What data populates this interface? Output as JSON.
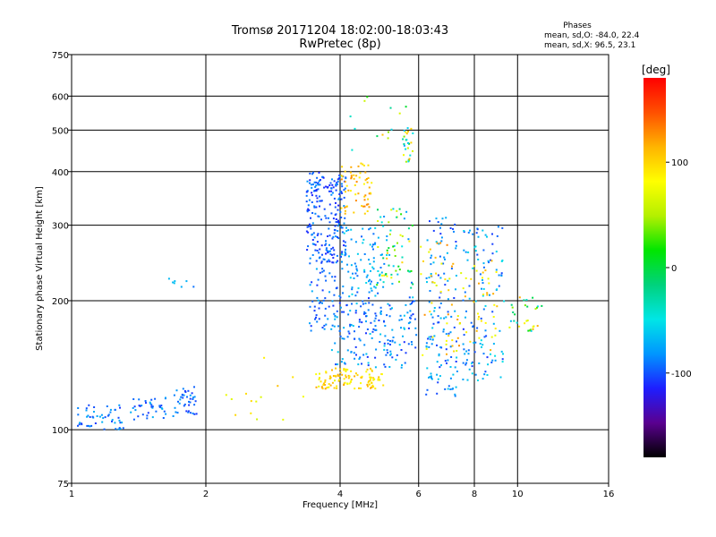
{
  "chart_data": {
    "type": "scatter",
    "title": "Tromsø 20171204 18:02:00-18:03:43",
    "subtitle": "RwPretec (8p)",
    "xlabel": "Frequency [MHz]",
    "ylabel": "Stationary phase Virtual Height [km]",
    "x_scale": "log",
    "y_scale": "log",
    "xlim": [
      1,
      16
    ],
    "ylim": [
      75,
      750
    ],
    "x_ticks": [
      1,
      2,
      4,
      6,
      8,
      10,
      16
    ],
    "y_ticks": [
      75,
      100,
      200,
      300,
      400,
      500,
      600,
      750
    ],
    "grid": true,
    "info": {
      "heading": "Phases",
      "line_o": "mean, sd,O: -84.0, 22.4",
      "line_x": "mean, sd,X:  96.5, 23.1"
    },
    "colorbar": {
      "label": "[deg]",
      "range": [
        -180,
        180
      ],
      "ticks": [
        100,
        0,
        -100
      ],
      "colors": [
        "#000000",
        "#5a0090",
        "#1e1eff",
        "#0096ff",
        "#00e6e6",
        "#00d27d",
        "#00e600",
        "#b4f000",
        "#ffff00",
        "#ffb400",
        "#ff5000",
        "#ff0000"
      ]
    },
    "clusters": [
      {
        "x": [
          1.02,
          1.3
        ],
        "y": [
          100,
          115
        ],
        "phase": [
          -110,
          -70
        ],
        "n": 50
      },
      {
        "x": [
          1.35,
          1.62
        ],
        "y": [
          106,
          120
        ],
        "phase": [
          -110,
          -70
        ],
        "n": 38
      },
      {
        "x": [
          1.68,
          1.92
        ],
        "y": [
          108,
          128
        ],
        "phase": [
          -110,
          -75
        ],
        "n": 40
      },
      {
        "x": [
          1.45,
          1.9
        ],
        "y": [
          215,
          228
        ],
        "phase": [
          -100,
          -60
        ],
        "n": 7
      },
      {
        "x": [
          2.2,
          3.3
        ],
        "y": [
          105,
          160
        ],
        "phase": [
          60,
          110
        ],
        "n": 14
      },
      {
        "x": [
          3.35,
          4.1
        ],
        "y": [
          245,
          400
        ],
        "phase": [
          -115,
          -80
        ],
        "n": 230
      },
      {
        "x": [
          3.4,
          4.0
        ],
        "y": [
          170,
          240
        ],
        "phase": [
          -110,
          -70
        ],
        "n": 55
      },
      {
        "x": [
          3.5,
          5.0
        ],
        "y": [
          125,
          140
        ],
        "phase": [
          70,
          120
        ],
        "n": 110
      },
      {
        "x": [
          3.8,
          5.9
        ],
        "y": [
          140,
          205
        ],
        "phase": [
          -110,
          -60
        ],
        "n": 180
      },
      {
        "x": [
          4.0,
          5.0
        ],
        "y": [
          205,
          300
        ],
        "phase": [
          -100,
          -50
        ],
        "n": 80
      },
      {
        "x": [
          4.0,
          4.7
        ],
        "y": [
          320,
          420
        ],
        "phase": [
          80,
          130
        ],
        "n": 60
      },
      {
        "x": [
          4.8,
          5.8
        ],
        "y": [
          210,
          330
        ],
        "phase": [
          -90,
          110
        ],
        "n": 70
      },
      {
        "x": [
          5.5,
          5.8
        ],
        "y": [
          420,
          510
        ],
        "phase": [
          -80,
          120
        ],
        "n": 25
      },
      {
        "x": [
          6.2,
          7.3
        ],
        "y": [
          120,
          320
        ],
        "phase": [
          -110,
          -60
        ],
        "n": 130
      },
      {
        "x": [
          6.0,
          7.5
        ],
        "y": [
          150,
          280
        ],
        "phase": [
          60,
          130
        ],
        "n": 45
      },
      {
        "x": [
          7.5,
          9.3
        ],
        "y": [
          130,
          300
        ],
        "phase": [
          -110,
          -50
        ],
        "n": 120
      },
      {
        "x": [
          7.5,
          9.0
        ],
        "y": [
          150,
          250
        ],
        "phase": [
          70,
          120
        ],
        "n": 35
      },
      {
        "x": [
          9.5,
          11.3
        ],
        "y": [
          170,
          205
        ],
        "phase": [
          -80,
          120
        ],
        "n": 30
      },
      {
        "x": [
          4.2,
          6.5
        ],
        "y": [
          440,
          620
        ],
        "phase": [
          -60,
          120
        ],
        "n": 14
      }
    ]
  }
}
